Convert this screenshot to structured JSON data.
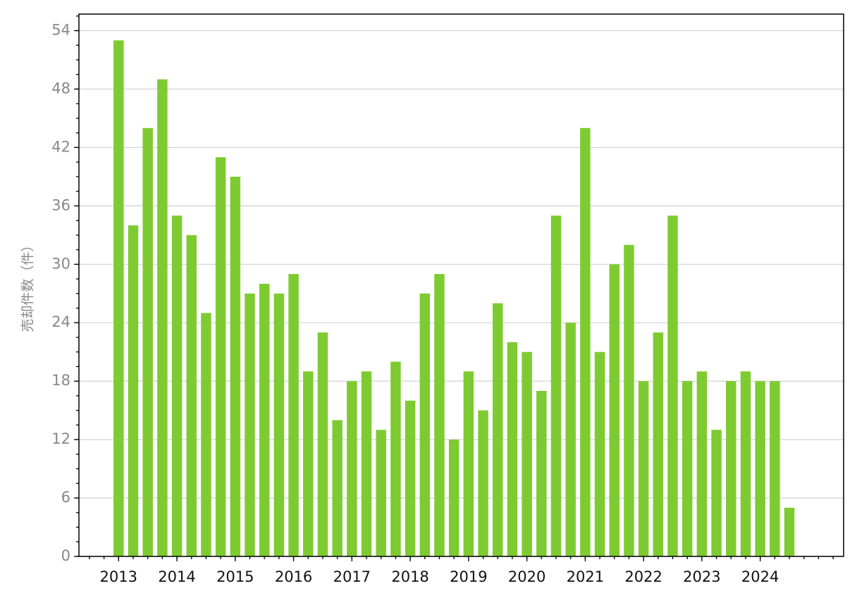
{
  "chart_data": {
    "type": "bar",
    "y_label": "売却件数（件）",
    "color": "#7ecb31",
    "x": [
      2013,
      2013.25,
      2013.5,
      2013.75,
      2014,
      2014.25,
      2014.5,
      2014.75,
      2015,
      2015.25,
      2015.5,
      2015.75,
      2016,
      2016.25,
      2016.5,
      2016.75,
      2017,
      2017.25,
      2017.5,
      2017.75,
      2018,
      2018.25,
      2018.5,
      2018.75,
      2019,
      2019.25,
      2019.5,
      2019.75,
      2020,
      2020.25,
      2020.5,
      2020.75,
      2021,
      2021.25,
      2021.5,
      2021.75,
      2022,
      2022.25,
      2022.5,
      2022.75,
      2023,
      2023.25,
      2023.5,
      2023.75,
      2024,
      2024.25,
      2024.5
    ],
    "values": [
      53,
      34,
      44,
      49,
      35,
      33,
      25,
      41,
      39,
      27,
      28,
      27,
      29,
      19,
      23,
      14,
      18,
      19,
      13,
      20,
      16,
      27,
      29,
      12,
      19,
      15,
      26,
      22,
      21,
      17,
      35,
      24,
      44,
      21,
      30,
      32,
      18,
      23,
      35,
      18,
      19,
      13,
      18,
      19,
      18,
      18,
      5
    ],
    "xlim": [
      2012.32,
      2025.43
    ],
    "xticks": [
      2013,
      2014,
      2015,
      2016,
      2017,
      2018,
      2019,
      2020,
      2021,
      2022,
      2023,
      2024
    ],
    "ylim": [
      0,
      55.7
    ],
    "yticks": [
      0,
      6,
      12,
      18,
      24,
      30,
      36,
      42,
      48,
      54
    ],
    "grid": true
  }
}
